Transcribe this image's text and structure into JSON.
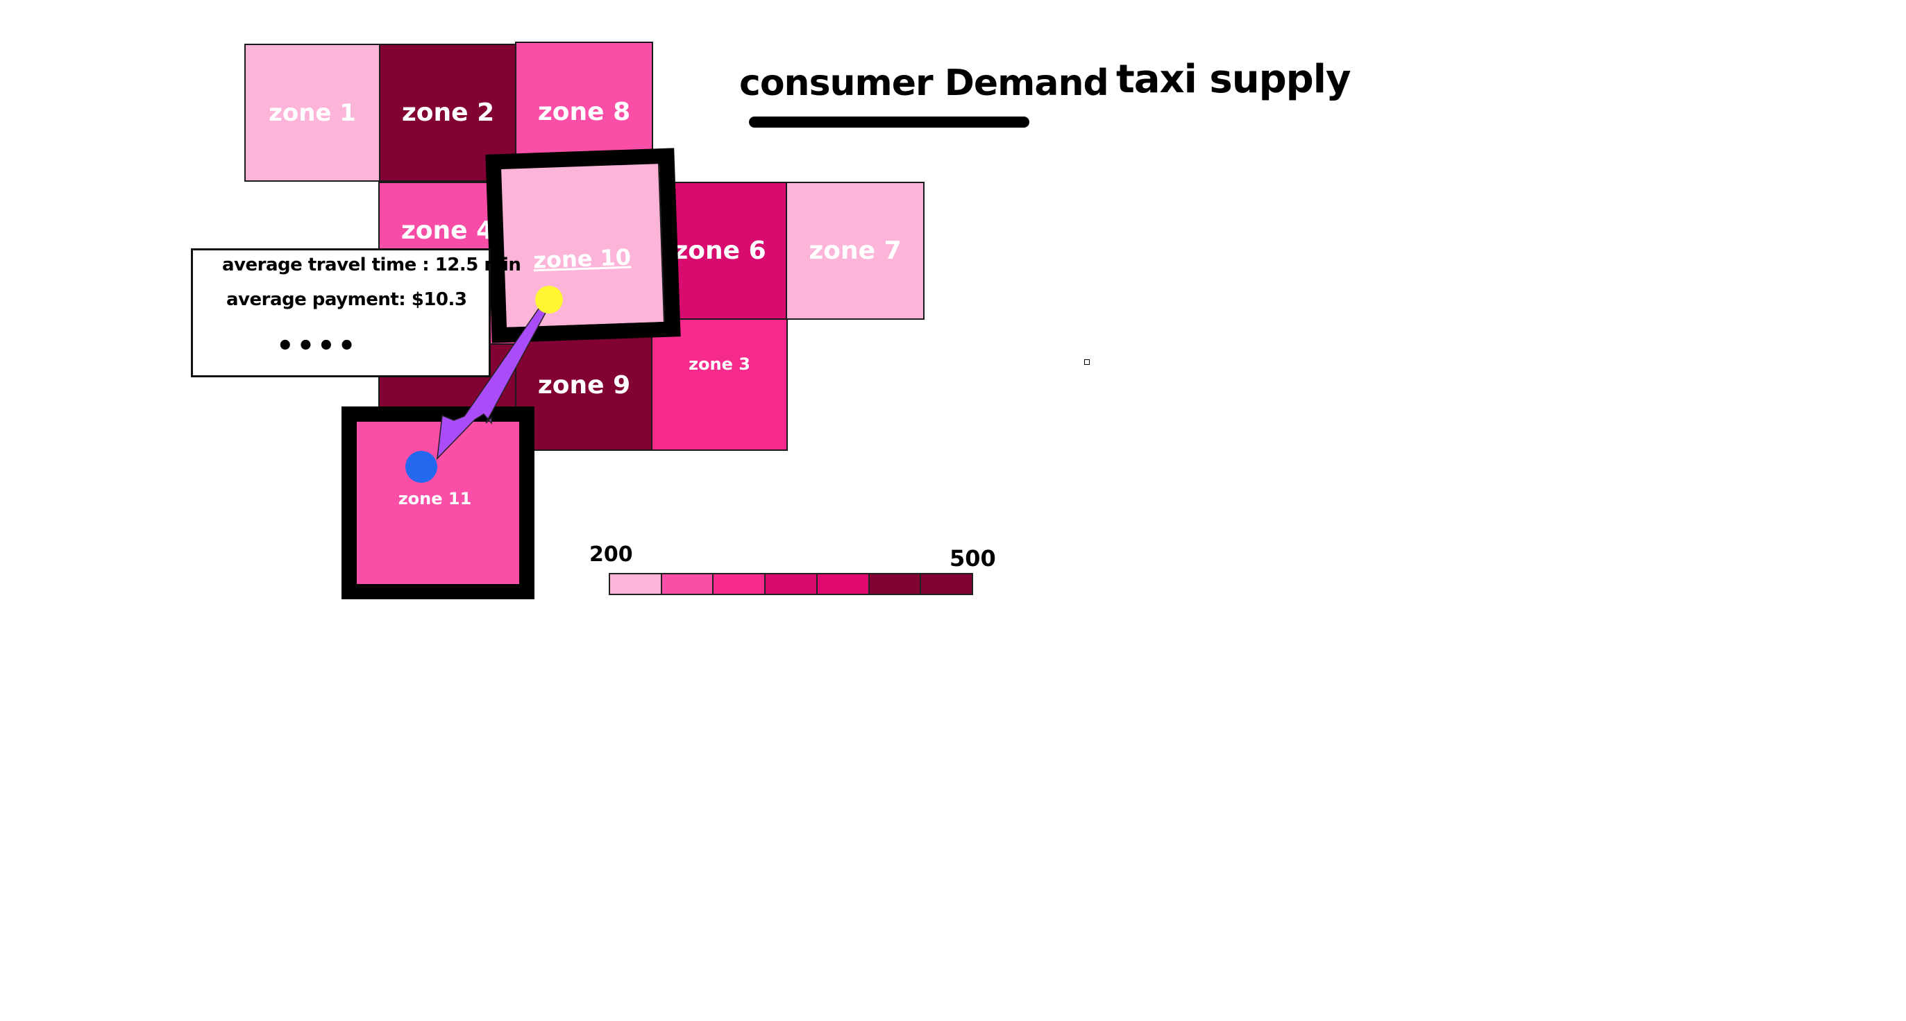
{
  "tabs": {
    "demand": "consumer Demand",
    "supply": "taxi supply"
  },
  "zones": {
    "z1": {
      "label": "zone 1",
      "color": "#FDB4D9"
    },
    "z2": {
      "label": "zone 2",
      "color": "#830234"
    },
    "z8": {
      "label": "zone 8",
      "color": "#FB4FA7"
    },
    "z4": {
      "label": "zone 4",
      "color": "#F84DA6"
    },
    "z10": {
      "label": "zone 10",
      "color": "#FDB4D9"
    },
    "z6": {
      "label": "zone 6",
      "color": "#D70C6E"
    },
    "z7": {
      "label": "zone 7",
      "color": "#FDB4D9"
    },
    "z5": {
      "label": "",
      "color": "#830234"
    },
    "z9": {
      "label": "zone 9",
      "color": "#830234"
    },
    "z3": {
      "label": "zone 3",
      "color": "#F52A8C"
    },
    "z11": {
      "label": "zone 11",
      "color": "#FB4FA7"
    }
  },
  "tooltip": {
    "travel_label": "average travel time :",
    "travel_value": "12.5 min",
    "payment_label": "average payment:",
    "payment_value": "$10.3",
    "more": "••••"
  },
  "legend": {
    "min": "200",
    "max": "500",
    "colors": [
      "#FDB4D9",
      "#FB4FA7",
      "#F52A8C",
      "#D70C6E",
      "#E0096F",
      "#830234",
      "#830234"
    ]
  },
  "markers": {
    "origin_color": "#FFF530",
    "destination_color": "#2468F0",
    "arrow_color": "#AA4CF7"
  }
}
